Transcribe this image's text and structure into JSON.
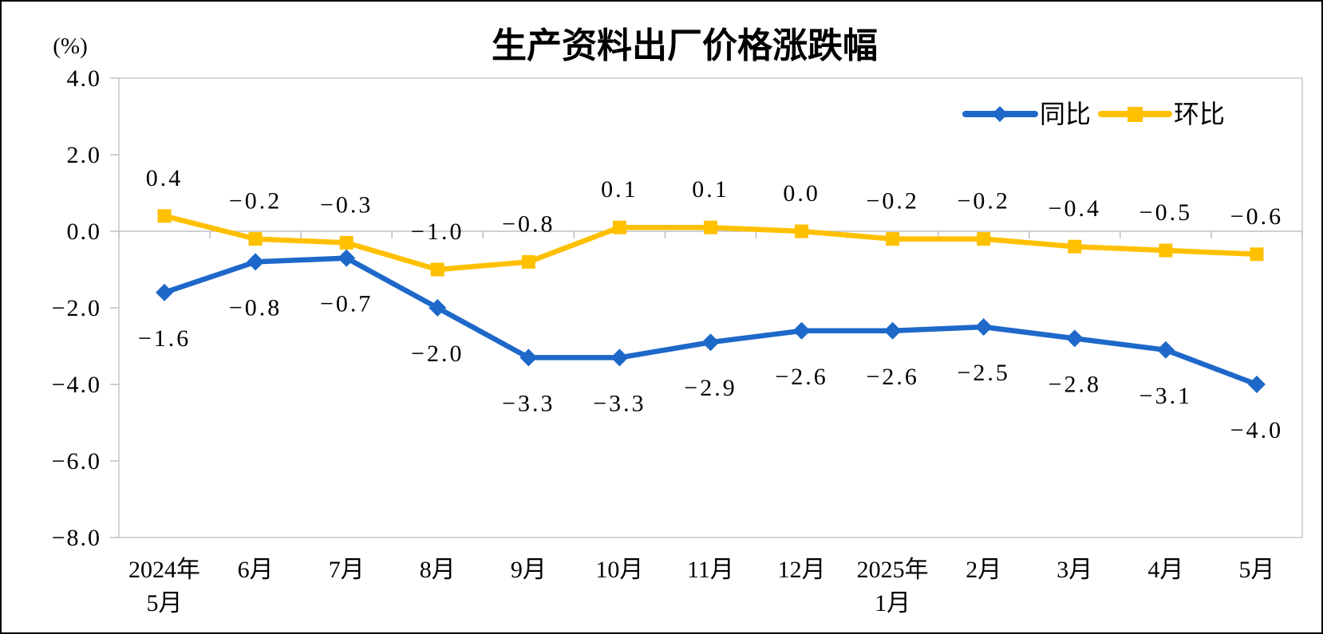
{
  "chart_data": {
    "type": "line",
    "title": "生产资料出厂价格涨跌幅",
    "ylabel": "(%)",
    "xlabel": "",
    "ylim": [
      -8.0,
      4.0
    ],
    "ytick_interval": 2.0,
    "yticks": [
      "4.0",
      "2.0",
      "0.0",
      "-2.0",
      "-4.0",
      "-6.0",
      "-8.0"
    ],
    "grid": false,
    "legend_position": "top-right-inside",
    "axis_color": "#BFBFBF",
    "border_color": "#C9C9C9",
    "categories": [
      "2024年5月",
      "6月",
      "7月",
      "8月",
      "9月",
      "10月",
      "11月",
      "12月",
      "2025年1月",
      "2月",
      "3月",
      "4月",
      "5月"
    ],
    "category_labels": [
      {
        "line1": "2024年",
        "line2": "5月"
      },
      {
        "line1": "6月",
        "line2": ""
      },
      {
        "line1": "7月",
        "line2": ""
      },
      {
        "line1": "8月",
        "line2": ""
      },
      {
        "line1": "9月",
        "line2": ""
      },
      {
        "line1": "10月",
        "line2": ""
      },
      {
        "line1": "11月",
        "line2": ""
      },
      {
        "line1": "12月",
        "line2": ""
      },
      {
        "line1": "2025年",
        "line2": "1月"
      },
      {
        "line1": "2月",
        "line2": ""
      },
      {
        "line1": "3月",
        "line2": ""
      },
      {
        "line1": "4月",
        "line2": ""
      },
      {
        "line1": "5月",
        "line2": ""
      }
    ],
    "series": [
      {
        "id": "yoy",
        "name": "同比",
        "color": "#1E68C9",
        "marker": "diamond",
        "label_position": "below",
        "values": [
          -1.6,
          -0.8,
          -0.7,
          -2.0,
          -3.3,
          -3.3,
          -2.9,
          -2.6,
          -2.6,
          -2.5,
          -2.8,
          -3.1,
          -4.0
        ],
        "labels": [
          "-1.6",
          "-0.8",
          "-0.7",
          "-2.0",
          "-3.3",
          "-3.3",
          "-2.9",
          "-2.6",
          "-2.6",
          "-2.5",
          "-2.8",
          "-3.1",
          "-4.0"
        ]
      },
      {
        "id": "mom",
        "name": "环比",
        "color": "#FFC000",
        "marker": "square",
        "label_position": "above",
        "values": [
          0.4,
          -0.2,
          -0.3,
          -1.0,
          -0.8,
          0.1,
          0.1,
          0.0,
          -0.2,
          -0.2,
          -0.4,
          -0.5,
          -0.6
        ],
        "labels": [
          "0.4",
          "-0.2",
          "-0.3",
          "-1.0",
          "-0.8",
          "0.1",
          "0.1",
          "0.0",
          "-0.2",
          "-0.2",
          "-0.4",
          "-0.5",
          "-0.6"
        ]
      }
    ]
  }
}
